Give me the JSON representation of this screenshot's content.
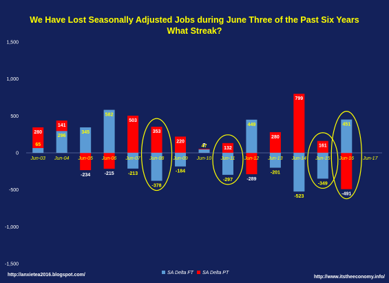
{
  "chart_data": {
    "type": "bar",
    "title": "We Have Lost Seasonally Adjusted Jobs during June  Three of the Past Six Years",
    "subtitle": "What Streak?",
    "categories": [
      "Jun-03",
      "Jun-04",
      "Jun-05",
      "Jun-06",
      "Jun-07",
      "Jun-08",
      "Jun-09",
      "Jun-10",
      "Jun-11",
      "Jun-12",
      "Jun-13",
      "Jun-14",
      "Jun-15",
      "Jun-16",
      "Jun-17"
    ],
    "series": [
      {
        "name": "SA Delta FT",
        "color": "#5b9bd5",
        "values": [
          65,
          296,
          345,
          582,
          -213,
          -378,
          -184,
          47,
          -297,
          449,
          -201,
          -523,
          -349,
          451,
          null
        ],
        "labels": [
          "65",
          "296",
          "345",
          "582",
          "-213",
          "-378",
          "-184",
          "47",
          "-297",
          "449",
          "-201",
          "-523",
          "-349",
          "451",
          ""
        ]
      },
      {
        "name": "SA Delta PT",
        "color": "#ff0000",
        "values": [
          280,
          141,
          -234,
          -215,
          503,
          353,
          220,
          7,
          132,
          -289,
          280,
          799,
          161,
          -491,
          null
        ],
        "labels": [
          "280",
          "141",
          "-234",
          "-215",
          "503",
          "353",
          "220",
          "7",
          "132",
          "-289",
          "280",
          "799",
          "161",
          "-491",
          ""
        ]
      }
    ],
    "ylim": [
      -1500,
      1500
    ],
    "yticks": [
      1500,
      1000,
      500,
      0,
      -500,
      -1000,
      -1500
    ],
    "ytick_labels": [
      "1,500",
      "1,000",
      "500",
      "0",
      "-500",
      "-1,000",
      "-1,500"
    ],
    "legend_position": "bottom",
    "circled_categories": [
      "Jun-08",
      "Jun-11",
      "Jun-15",
      "Jun-16"
    ],
    "circle_color": "#ffff00"
  },
  "footer": {
    "left_url": "http://anxietea2016.blogspot.com/",
    "right_url": "http://www.itstheeconomy.info/"
  }
}
